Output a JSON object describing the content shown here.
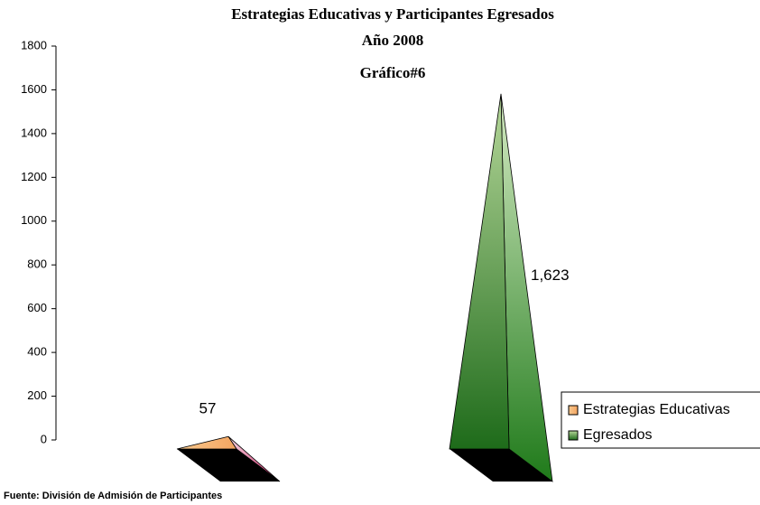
{
  "chart_data": {
    "type": "pyramid",
    "title": [
      "Estrategias Educativas y Participantes Egresados",
      "Año  2008",
      "Gráfico#6"
    ],
    "series": [
      {
        "name": "Estrategias Educativas",
        "color": "#f4b183",
        "values": [
          57
        ]
      },
      {
        "name": "Egresados",
        "color": "#2e7d1f",
        "values": [
          1623
        ],
        "value_labels": [
          "1,623"
        ]
      }
    ],
    "ylim": [
      0,
      1800
    ],
    "yticks": [
      0,
      200,
      400,
      600,
      800,
      1000,
      1200,
      1400,
      1600,
      1800
    ],
    "legend": "right",
    "source": "Fuente:  División de Admisión de Participantes"
  }
}
